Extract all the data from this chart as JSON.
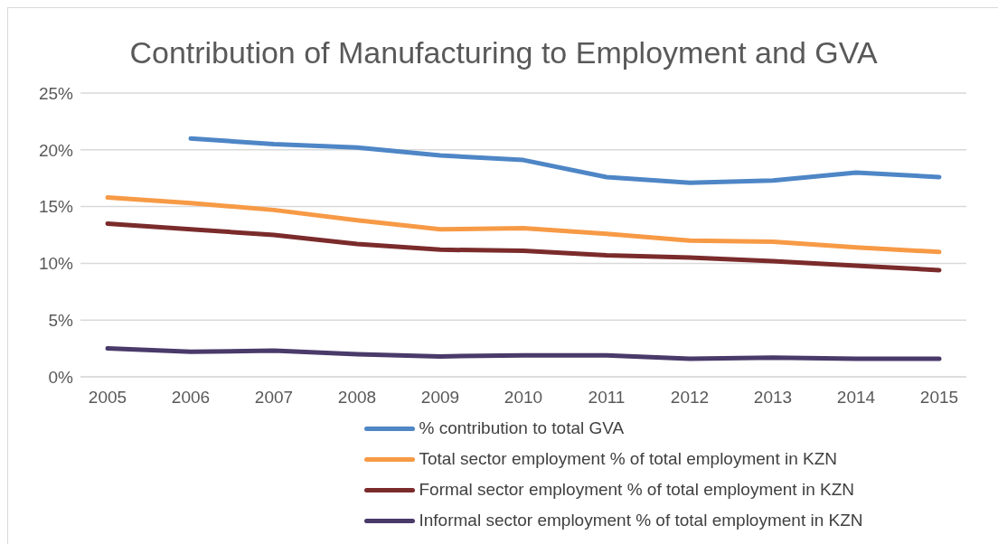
{
  "chart_data": {
    "type": "line",
    "title": "Contribution of Manufacturing to Employment and GVA",
    "categories": [
      "2005",
      "2006",
      "2007",
      "2008",
      "2009",
      "2010",
      "2011",
      "2012",
      "2013",
      "2014",
      "2015"
    ],
    "series": [
      {
        "name": "% contribution to total GVA",
        "color": "#4e86c6",
        "values": [
          null,
          21.0,
          20.5,
          20.2,
          19.5,
          19.1,
          17.6,
          17.1,
          17.3,
          18.0,
          17.6
        ]
      },
      {
        "name": "Total sector employment % of total employment in KZN",
        "color": "#f79a46",
        "values": [
          15.8,
          15.3,
          14.7,
          13.8,
          13.0,
          13.1,
          12.6,
          12.0,
          11.9,
          11.4,
          11.0
        ]
      },
      {
        "name": "Formal sector employment  % of total employment in KZN",
        "color": "#7b2b2b",
        "values": [
          13.5,
          13.0,
          12.5,
          11.7,
          11.2,
          11.1,
          10.7,
          10.5,
          10.2,
          9.8,
          9.4
        ]
      },
      {
        "name": "Informal sector employment % of total employment in KZN",
        "color": "#4a3a6a",
        "values": [
          2.5,
          2.2,
          2.3,
          2.0,
          1.8,
          1.9,
          1.9,
          1.6,
          1.7,
          1.6,
          1.6
        ]
      }
    ],
    "ylim": [
      0,
      25
    ],
    "yticks": [
      {
        "value": 0,
        "label": "0%"
      },
      {
        "value": 5,
        "label": "5%"
      },
      {
        "value": 10,
        "label": "10%"
      },
      {
        "value": 15,
        "label": "15%"
      },
      {
        "value": 20,
        "label": "20%"
      },
      {
        "value": 25,
        "label": "25%"
      }
    ],
    "grid": "y",
    "legend": "bottom",
    "marker": "none",
    "line_style": "solid"
  }
}
